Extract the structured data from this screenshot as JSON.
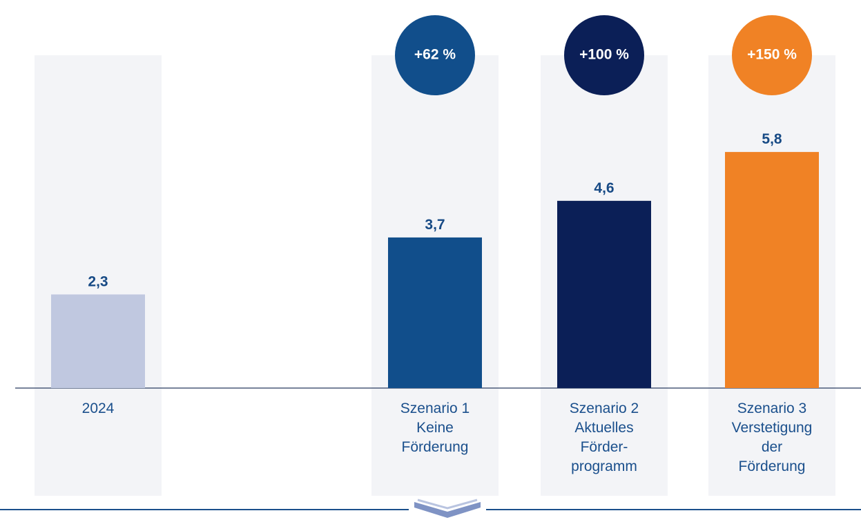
{
  "chart_data": {
    "type": "bar",
    "categories": [
      "2024",
      "Szenario 1\nKeine\nFörderung",
      "Szenario 2\nAktuelles\nFörder-\nprogramm",
      "Szenario 3\nVerstetigung\nder\nFörderung"
    ],
    "values": [
      2.3,
      3.7,
      4.6,
      5.8
    ],
    "value_labels": [
      "2,3",
      "3,7",
      "4,6",
      "5,8"
    ],
    "colors": [
      "#c0c8e0",
      "#114e8b",
      "#0b1f57",
      "#f08225"
    ],
    "changes": [
      null,
      "+62 %",
      "+100 %",
      "+150 %"
    ],
    "ylim": [
      0,
      9.5
    ]
  }
}
